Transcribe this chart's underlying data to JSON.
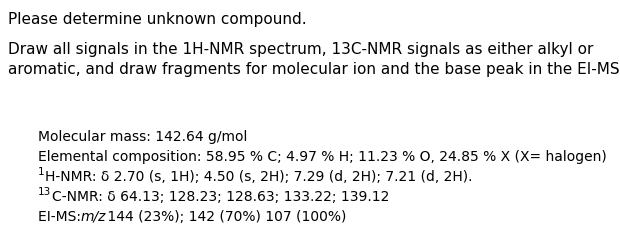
{
  "background_color": "#ffffff",
  "title_line1": "Please determine unknown compound.",
  "title_line2": "Draw all signals in the 1H-NMR spectrum, 13C-NMR signals as either alkyl or",
  "title_line3": "aromatic, and draw fragments for molecular ion and the base peak in the EI-MS)",
  "mol_mass_label": "Molecular mass: 142.64 g/mol",
  "elem_comp_label": "Elemental composition: 58.95 % C; 4.97 % H; 11.23 % O, 24.85 % X (X= halogen)",
  "hnmr_superscript": "1",
  "hnmr_label": "H-NMR: δ 2.70 (s, 1H); 4.50 (s, 2H); 7.29 (d, 2H); 7.21 (d, 2H).",
  "cnmr_superscript": "13",
  "cnmr_label": "C-NMR: δ 64.13; 128.23; 128.63; 133.22; 139.12",
  "eims_label": "EI-MS: ",
  "eims_label_italic": "m/z",
  "eims_values": " 144 (23%); 142 (70%) 107 (100%)",
  "text_color": "#000000",
  "font_size_title": 11.0,
  "font_size_body": 10.0,
  "font_size_super": 7.5
}
